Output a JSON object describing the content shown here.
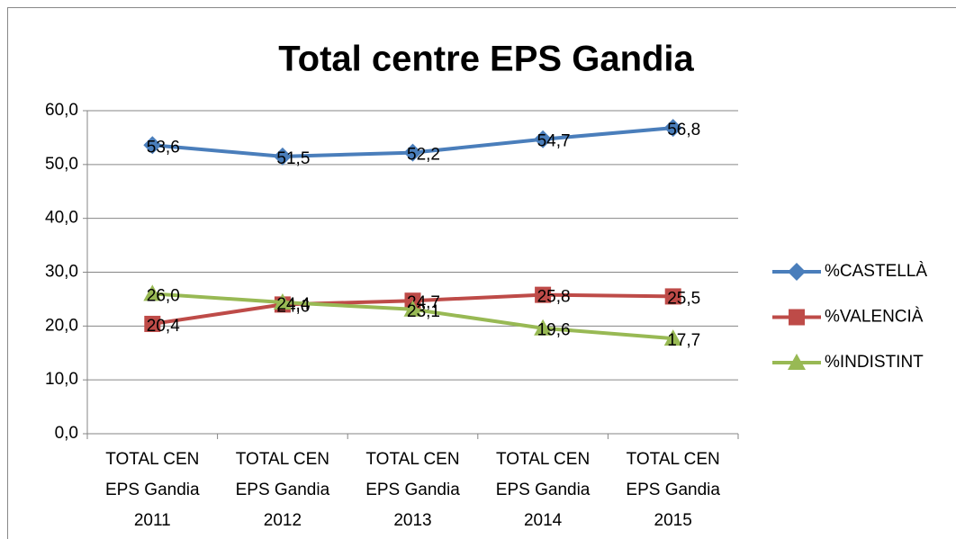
{
  "chart_data": {
    "type": "line",
    "title": "Total centre EPS Gandia",
    "categories": [
      "TOTAL CEN EPS Gandia 2011",
      "TOTAL CEN EPS Gandia 2012",
      "TOTAL CEN EPS Gandia 2013",
      "TOTAL CEN EPS Gandia 2014",
      "TOTAL CEN EPS Gandia 2015"
    ],
    "series": [
      {
        "name": "%CASTELLÀ",
        "color": "#4a7ebb",
        "marker": "diamond",
        "values": [
          53.6,
          51.5,
          52.2,
          54.7,
          56.8
        ],
        "value_labels": [
          "53,6",
          "51,5",
          "52,2",
          "54,7",
          "56,8"
        ]
      },
      {
        "name": "%VALENCIÀ",
        "color": "#be4b48",
        "marker": "square",
        "values": [
          20.4,
          24.0,
          24.7,
          25.8,
          25.5
        ],
        "value_labels": [
          "20,4",
          "24,0",
          "24,7",
          "25,8",
          "25,5"
        ]
      },
      {
        "name": "%INDISTINT",
        "color": "#98b954",
        "marker": "triangle",
        "values": [
          26.0,
          24.4,
          23.1,
          19.6,
          17.7
        ],
        "value_labels": [
          "26,0",
          "24,4",
          "23,1",
          "19,6",
          "17,7"
        ]
      }
    ],
    "ylim": [
      0,
      60
    ],
    "yticks": [
      {
        "value": 0,
        "label": "0,0"
      },
      {
        "value": 10,
        "label": "10,0"
      },
      {
        "value": 20,
        "label": "20,0"
      },
      {
        "value": 30,
        "label": "30,0"
      },
      {
        "value": 40,
        "label": "40,0"
      },
      {
        "value": 50,
        "label": "50,0"
      },
      {
        "value": 60,
        "label": "60,0"
      }
    ],
    "grid": true,
    "legend": "right"
  }
}
